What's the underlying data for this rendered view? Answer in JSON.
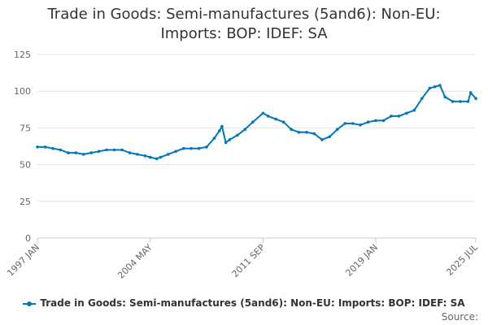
{
  "chart_data": {
    "type": "line",
    "title_lines": [
      "Trade in Goods: Semi-manufactures (5and6): Non-EU:",
      "Imports: BOP: IDEF: SA"
    ],
    "xlabel": "",
    "ylabel": "",
    "ylim": [
      0,
      125
    ],
    "yticks": [
      0,
      25,
      50,
      75,
      100,
      125
    ],
    "x_range": [
      "1997 JAN",
      "2025 JUL"
    ],
    "x_tick_labels": [
      "1997 JAN",
      "2004 MAY",
      "2011 SEP",
      "2019 JAN",
      "2025 JUL"
    ],
    "grid": true,
    "legend_position": "bottom",
    "color": "#0077bb",
    "series": [
      {
        "name": "Trade in Goods: Semi-manufactures (5and6): Non-EU: Imports: BOP: IDEF: SA",
        "points": [
          [
            "1997 JAN",
            62
          ],
          [
            "1997 JUL",
            62
          ],
          [
            "1998 JAN",
            61
          ],
          [
            "1998 JUL",
            60
          ],
          [
            "1999 JAN",
            58
          ],
          [
            "1999 JUL",
            58
          ],
          [
            "2000 JAN",
            57
          ],
          [
            "2000 JUL",
            58
          ],
          [
            "2001 JAN",
            59
          ],
          [
            "2001 JUL",
            60
          ],
          [
            "2002 JAN",
            60
          ],
          [
            "2002 JUL",
            60
          ],
          [
            "2003 JAN",
            58
          ],
          [
            "2003 JUL",
            57
          ],
          [
            "2004 JAN",
            56
          ],
          [
            "2004 MAY",
            55
          ],
          [
            "2004 OCT",
            54
          ],
          [
            "2005 JAN",
            55
          ],
          [
            "2005 JUL",
            57
          ],
          [
            "2006 JAN",
            59
          ],
          [
            "2006 JUL",
            61
          ],
          [
            "2007 JAN",
            61
          ],
          [
            "2007 JUL",
            61
          ],
          [
            "2008 JAN",
            62
          ],
          [
            "2008 JUL",
            68
          ],
          [
            "2008 NOV",
            73
          ],
          [
            "2009 JAN",
            76
          ],
          [
            "2009 APR",
            65
          ],
          [
            "2009 JUL",
            67
          ],
          [
            "2010 JAN",
            70
          ],
          [
            "2010 JUL",
            74
          ],
          [
            "2011 JAN",
            79
          ],
          [
            "2011 SEP",
            85
          ],
          [
            "2012 JAN",
            83
          ],
          [
            "2012 JUL",
            81
          ],
          [
            "2013 JAN",
            79
          ],
          [
            "2013 JUL",
            74
          ],
          [
            "2014 JAN",
            72
          ],
          [
            "2014 JUL",
            72
          ],
          [
            "2015 JAN",
            71
          ],
          [
            "2015 JUL",
            67
          ],
          [
            "2016 JAN",
            69
          ],
          [
            "2016 JUL",
            74
          ],
          [
            "2017 JAN",
            78
          ],
          [
            "2017 JUL",
            78
          ],
          [
            "2018 JAN",
            77
          ],
          [
            "2018 JUL",
            79
          ],
          [
            "2019 JAN",
            80
          ],
          [
            "2019 JUL",
            80
          ],
          [
            "2020 JAN",
            83
          ],
          [
            "2020 JUL",
            83
          ],
          [
            "2021 JAN",
            85
          ],
          [
            "2021 JUL",
            87
          ],
          [
            "2022 JAN",
            95
          ],
          [
            "2022 JUL",
            102
          ],
          [
            "2022 NOV",
            103
          ],
          [
            "2023 MAR",
            104
          ],
          [
            "2023 JUL",
            96
          ],
          [
            "2024 JAN",
            93
          ],
          [
            "2024 JUL",
            93
          ],
          [
            "2025 JAN",
            93
          ],
          [
            "2025 MAR",
            99
          ],
          [
            "2025 JUL",
            95
          ]
        ]
      }
    ]
  },
  "legend": {
    "label": "Trade in Goods: Semi-manufactures (5and6): Non-EU: Imports: BOP: IDEF: SA"
  },
  "source_label": "Source:"
}
